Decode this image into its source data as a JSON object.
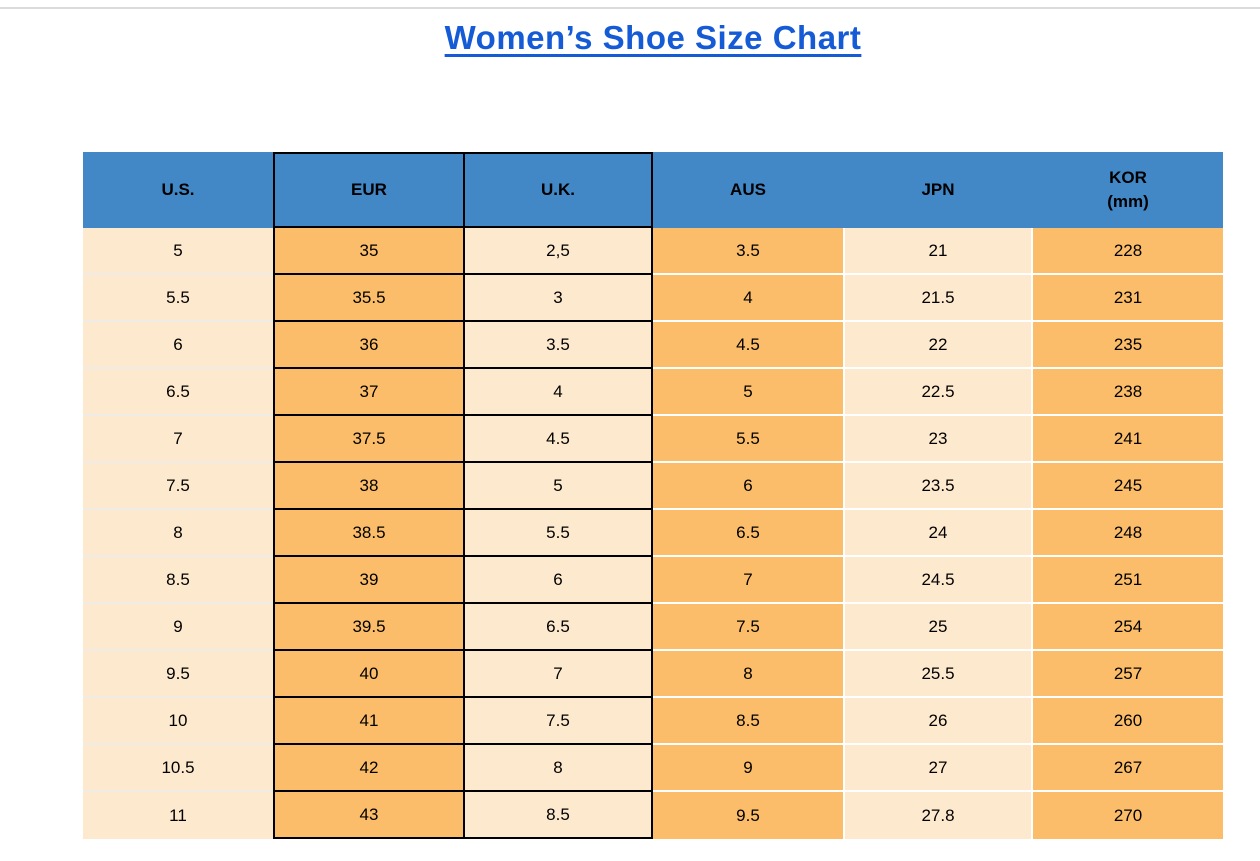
{
  "page": {
    "title": "Women’s Shoe Size Chart"
  },
  "colors": {
    "title_blue": "#155bd5",
    "header_blue": "#4287c6",
    "orange_cell": "#fbbd69",
    "cream_cell": "#fde9cd",
    "top_line_gray": "#dbdbdb",
    "border_black": "#000000"
  },
  "table": {
    "columns": [
      {
        "label": "U.S.",
        "style": "col-cream",
        "bordered": false
      },
      {
        "label": "EUR",
        "style": "col-orange",
        "bordered": true
      },
      {
        "label": "U.K.",
        "style": "col-cream",
        "bordered": true
      },
      {
        "label": "AUS",
        "style": "col-orange",
        "bordered": false
      },
      {
        "label": "JPN",
        "style": "col-cream",
        "bordered": false
      },
      {
        "label": "KOR",
        "sublabel": "(mm)",
        "style": "col-orange",
        "bordered": false
      }
    ],
    "rows": [
      [
        "5",
        "35",
        "2,5",
        "3.5",
        "21",
        "228"
      ],
      [
        "5.5",
        "35.5",
        "3",
        "4",
        "21.5",
        "231"
      ],
      [
        "6",
        "36",
        "3.5",
        "4.5",
        "22",
        "235"
      ],
      [
        "6.5",
        "37",
        "4",
        "5",
        "22.5",
        "238"
      ],
      [
        "7",
        "37.5",
        "4.5",
        "5.5",
        "23",
        "241"
      ],
      [
        "7.5",
        "38",
        "5",
        "6",
        "23.5",
        "245"
      ],
      [
        "8",
        "38.5",
        "5.5",
        "6.5",
        "24",
        "248"
      ],
      [
        "8.5",
        "39",
        "6",
        "7",
        "24.5",
        "251"
      ],
      [
        "9",
        "39.5",
        "6.5",
        "7.5",
        "25",
        "254"
      ],
      [
        "9.5",
        "40",
        "7",
        "8",
        "25.5",
        "257"
      ],
      [
        "10",
        "41",
        "7.5",
        "8.5",
        "26",
        "260"
      ],
      [
        "10.5",
        "42",
        "8",
        "9",
        "27",
        "267"
      ],
      [
        "11",
        "43",
        "8.5",
        "9.5",
        "27.8",
        "270"
      ]
    ]
  }
}
